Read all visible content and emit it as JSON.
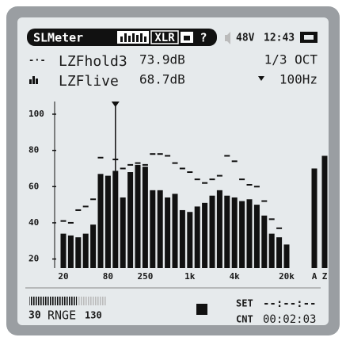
{
  "header": {
    "mode": "SLMeter",
    "input": "XLR",
    "help": "?",
    "phantom": "48V",
    "time": "12:43"
  },
  "readings": [
    {
      "label": "LZFhold3",
      "value": "73.9dB",
      "setting": "1/3 OCT"
    },
    {
      "label": "LZFlive",
      "value": "68.7dB",
      "setting": "100Hz"
    }
  ],
  "spectrum": {
    "type": "bar",
    "categories": [
      "20",
      null,
      null,
      null,
      null,
      null,
      "80",
      null,
      null,
      null,
      null,
      "250",
      null,
      null,
      null,
      null,
      null,
      "1k",
      null,
      null,
      null,
      null,
      null,
      "4k",
      null,
      null,
      null,
      null,
      null,
      null,
      "20k",
      "A",
      "Z"
    ],
    "values": [
      34,
      33,
      32,
      34,
      39,
      67,
      66,
      68.7,
      54,
      68,
      72,
      71,
      58,
      58,
      54,
      56,
      47,
      46,
      49,
      51,
      55,
      58,
      55,
      54,
      52,
      53,
      50,
      44,
      34,
      32,
      28,
      70,
      77
    ],
    "hold": [
      41,
      40,
      47,
      49,
      53,
      76,
      null,
      75,
      70,
      72,
      73,
      72,
      78,
      78,
      77,
      73,
      70,
      68,
      64,
      62,
      64,
      66,
      77,
      74,
      64,
      61,
      60,
      52,
      42,
      37,
      null,
      null,
      null
    ],
    "cursor": 7,
    "ylim": [
      15,
      107
    ],
    "yticks": [
      20,
      40,
      60,
      80,
      100
    ],
    "color": "#111111"
  },
  "footer": {
    "range_low": "30",
    "range_label": "RNGE",
    "range_high": "130",
    "set_label": "SET",
    "set_time": "--:--:--",
    "count_label": "CNT",
    "count_time": "00:02:03"
  }
}
